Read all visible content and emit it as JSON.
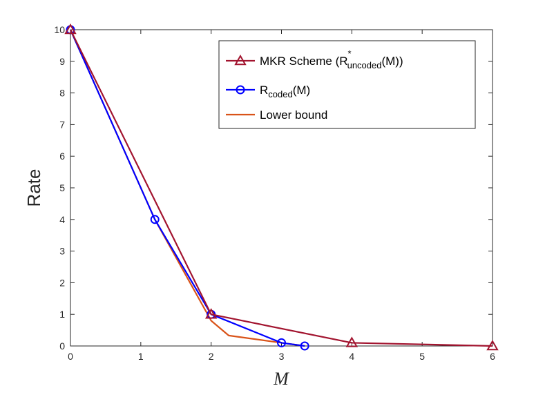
{
  "chart_data": {
    "type": "line",
    "xlabel": "M",
    "ylabel": "Rate",
    "xlim": [
      0,
      6
    ],
    "ylim": [
      0,
      10
    ],
    "x_ticks": [
      {
        "value": 0,
        "label": "0"
      },
      {
        "value": 1,
        "label": "1"
      },
      {
        "value": 2,
        "label": "2"
      },
      {
        "value": 3,
        "label": "3"
      },
      {
        "value": 4,
        "label": "4"
      },
      {
        "value": 5,
        "label": "5"
      },
      {
        "value": 6,
        "label": "6"
      }
    ],
    "y_ticks": [
      0,
      1,
      2,
      3,
      4,
      5,
      6,
      7,
      8,
      9,
      10
    ],
    "grid": false,
    "legend_position": "top-right",
    "series": [
      {
        "name": "MKR Scheme (R*uncoded(M))",
        "legend": {
          "main": "MKR Scheme (R",
          "sup": "*",
          "sub": "uncoded",
          "tail": "(M))"
        },
        "color": "#A2142F",
        "marker": "triangle",
        "x": [
          0,
          2,
          4,
          6
        ],
        "y": [
          10,
          1,
          0.1,
          0
        ]
      },
      {
        "name": "Rcoded(M)",
        "legend": {
          "main": "R",
          "sup": "",
          "sub": "coded",
          "tail": "(M)"
        },
        "color": "#0000FF",
        "marker": "circle",
        "x": [
          0,
          1.2,
          2,
          3,
          3.33
        ],
        "y": [
          10,
          4,
          1,
          0.1,
          0
        ]
      },
      {
        "name": "Lower bound",
        "legend": {
          "main": "Lower bound",
          "sup": "",
          "sub": "",
          "tail": ""
        },
        "color": "#D95319",
        "marker": "none",
        "x": [
          0,
          1.2,
          2,
          2.25,
          3,
          3.33
        ],
        "y": [
          10,
          4,
          0.8,
          0.33,
          0.1,
          0
        ]
      }
    ]
  }
}
